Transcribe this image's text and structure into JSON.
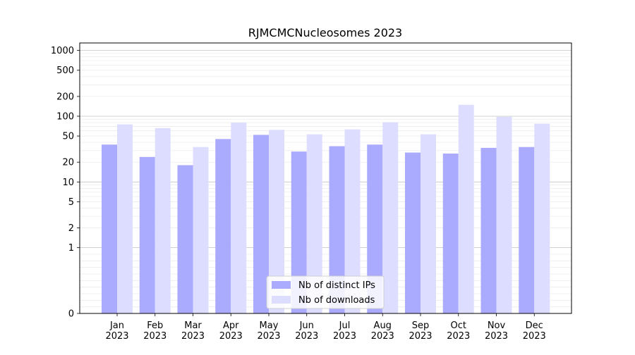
{
  "chart_data": {
    "type": "bar",
    "title": "RJMCMCNucleosomes 2023",
    "xlabel": "",
    "ylabel": "",
    "yscale": "symlog",
    "ylim": [
      0,
      1300
    ],
    "yticks": [
      0,
      1,
      2,
      5,
      10,
      20,
      50,
      100,
      200,
      500,
      1000
    ],
    "grid": true,
    "legend_position": "bottom-center",
    "categories": [
      "Jan\n2023",
      "Feb\n2023",
      "Mar\n2023",
      "Apr\n2023",
      "May\n2023",
      "Jun\n2023",
      "Jul\n2023",
      "Aug\n2023",
      "Sep\n2023",
      "Oct\n2023",
      "Nov\n2023",
      "Dec\n2023"
    ],
    "series": [
      {
        "name": "Nb of distinct IPs",
        "color": "#aaaaff",
        "values": [
          37,
          24,
          18,
          45,
          52,
          29,
          35,
          37,
          28,
          27,
          33,
          34
        ]
      },
      {
        "name": "Nb of downloads",
        "color": "#ddddff",
        "values": [
          75,
          66,
          34,
          80,
          62,
          53,
          63,
          81,
          53,
          149,
          98,
          77
        ]
      }
    ]
  }
}
